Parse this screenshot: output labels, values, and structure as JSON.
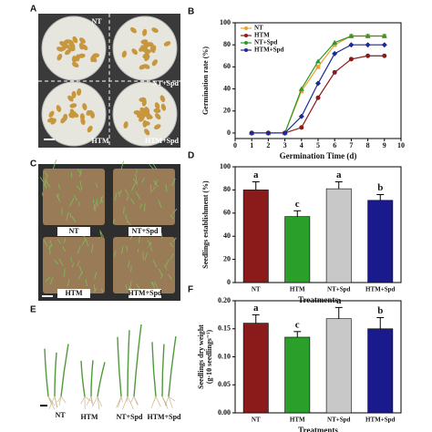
{
  "panels": [
    {
      "label": "A",
      "texts": [
        "NT",
        "NT+Spd",
        "HTM",
        "HTM+Spd"
      ]
    },
    {
      "label": "C",
      "texts": [
        "NT",
        "NT+Spd",
        "HTM",
        "HTM+Spd"
      ]
    },
    {
      "label": "E",
      "texts": [
        "NT",
        "HTM",
        "NT+Spd",
        "HTM+Spd"
      ]
    }
  ],
  "chart_data": [
    {
      "type": "line",
      "panel_label": "B",
      "xlabel": "Germination Time (d)",
      "ylabel": "Germination rate (%)",
      "x": [
        1,
        2,
        3,
        4,
        5,
        6,
        7,
        8,
        9
      ],
      "series": [
        {
          "name": "NT",
          "color": "#f0a030",
          "values": [
            0,
            0,
            0,
            38,
            60,
            80,
            88,
            88,
            88
          ]
        },
        {
          "name": "HTM",
          "color": "#8b1a1a",
          "values": [
            0,
            0,
            0,
            5,
            32,
            55,
            67,
            70,
            70
          ]
        },
        {
          "name": "NT+Spd",
          "color": "#2a9a2a",
          "values": [
            0,
            0,
            0,
            40,
            65,
            82,
            88,
            88,
            88
          ]
        },
        {
          "name": "HTM+Spd",
          "color": "#1a2a9a",
          "values": [
            0,
            0,
            0,
            15,
            45,
            72,
            80,
            80,
            80
          ]
        }
      ],
      "xlim": [
        0,
        10
      ],
      "xticks": [
        0,
        1,
        2,
        3,
        4,
        5,
        6,
        7,
        8,
        9,
        10
      ],
      "ylim": [
        -5,
        100
      ],
      "yticks": [
        0,
        20,
        40,
        60,
        80,
        100
      ],
      "legend": "top-left"
    },
    {
      "type": "bar",
      "panel_label": "D",
      "xlabel": "Treatments",
      "ylabel": "Seedlings establishment (%)",
      "categories": [
        "NT",
        "HTM",
        "NT+Spd",
        "HTM+Spd"
      ],
      "values": [
        80,
        57,
        81,
        71
      ],
      "errors": [
        7,
        5,
        6,
        5
      ],
      "letters": [
        "a",
        "c",
        "a",
        "b"
      ],
      "colors": [
        "#8b1a1a",
        "#2aa02a",
        "#c8c8c8",
        "#1a1a8c"
      ],
      "ylim": [
        0,
        100
      ],
      "yticks": [
        0,
        20,
        40,
        60,
        80,
        100
      ]
    },
    {
      "type": "bar",
      "panel_label": "F",
      "xlabel": "Treatments",
      "ylabel": [
        "Seedlings dry weight",
        "(g·10 seedlings⁻¹)"
      ],
      "categories": [
        "NT",
        "HTM",
        "NT+Spd",
        "HTM+Spd"
      ],
      "values": [
        0.16,
        0.135,
        0.168,
        0.15
      ],
      "errors": [
        0.015,
        0.01,
        0.02,
        0.02
      ],
      "letters": [
        "a",
        "c",
        "a",
        "b"
      ],
      "colors": [
        "#8b1a1a",
        "#2aa02a",
        "#c8c8c8",
        "#1a1a8c"
      ],
      "ylim": [
        0,
        0.2
      ],
      "yticks": [
        {
          "value": 0,
          "label": "0.00"
        },
        0.05,
        {
          "value": 0.1,
          "label": "0.10"
        },
        0.15,
        {
          "value": 0.2,
          "label": "0.20"
        }
      ]
    }
  ]
}
